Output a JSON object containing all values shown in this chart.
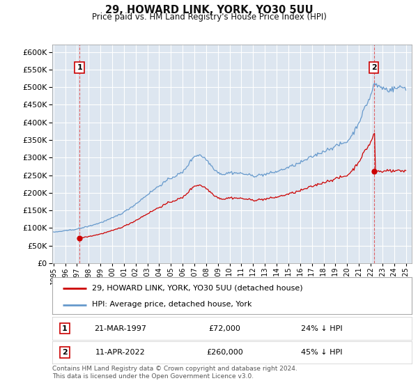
{
  "title": "29, HOWARD LINK, YORK, YO30 5UU",
  "subtitle": "Price paid vs. HM Land Registry's House Price Index (HPI)",
  "hpi_label": "HPI: Average price, detached house, York",
  "property_label": "29, HOWARD LINK, YORK, YO30 5UU (detached house)",
  "sale1_date": "21-MAR-1997",
  "sale1_price": 72000,
  "sale1_hpi_note": "24% ↓ HPI",
  "sale2_date": "11-APR-2022",
  "sale2_price": 260000,
  "sale2_hpi_note": "45% ↓ HPI",
  "footer": "Contains HM Land Registry data © Crown copyright and database right 2024.\nThis data is licensed under the Open Government Licence v3.0.",
  "hpi_color": "#6699cc",
  "property_color": "#cc0000",
  "marker_color": "#cc0000",
  "background_color": "#dde6f0",
  "grid_color": "#ffffff",
  "ylim": [
    0,
    620000
  ],
  "yticks": [
    0,
    50000,
    100000,
    150000,
    200000,
    250000,
    300000,
    350000,
    400000,
    450000,
    500000,
    550000,
    600000
  ],
  "sale1_year": 1997.22,
  "sale2_year": 2022.28,
  "xlim_start": 1994.9,
  "xlim_end": 2025.5
}
